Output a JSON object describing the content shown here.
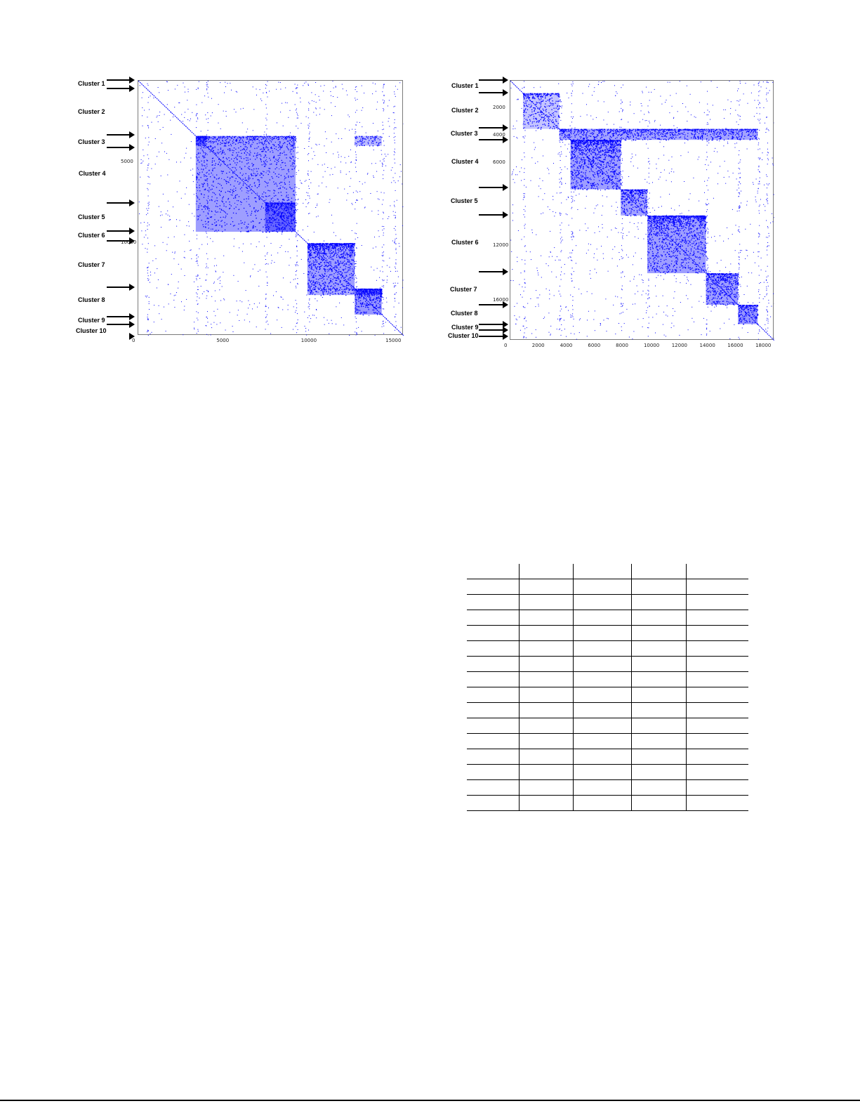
{
  "chart_data": [
    {
      "type": "heatmap",
      "title": "",
      "xlabel": "",
      "ylabel": "",
      "x_ticks": [
        "0",
        "5000",
        "10000",
        "15000"
      ],
      "y_ticks": [
        "5000",
        "10000"
      ],
      "xlim": [
        0,
        15700
      ],
      "ylim": [
        0,
        15700
      ],
      "color": "#0000ff",
      "cluster_labels": [
        "Cluster 1",
        "Cluster 2",
        "Cluster 3",
        "Cluster 4",
        "Cluster 5",
        "Cluster 6",
        "Cluster 7",
        "Cluster 8",
        "Cluster 9",
        "Cluster 10"
      ],
      "cluster_boundaries": [
        0,
        500,
        3400,
        4000,
        7500,
        9300,
        10000,
        12800,
        14400,
        15100
      ],
      "blocks": [
        {
          "x": [
            3400,
            9300
          ],
          "y": [
            3400,
            9300
          ],
          "density": 0.85
        },
        {
          "x": [
            3400,
            4000
          ],
          "y": [
            3400,
            4000
          ],
          "density": 0.95
        },
        {
          "x": [
            7500,
            9300
          ],
          "y": [
            7500,
            9300
          ],
          "density": 0.8
        },
        {
          "x": [
            10000,
            12800
          ],
          "y": [
            10000,
            12800
          ],
          "density": 0.85
        },
        {
          "x": [
            12800,
            14400
          ],
          "y": [
            12800,
            14400
          ],
          "density": 0.9
        },
        {
          "x": [
            12800,
            14400
          ],
          "y": [
            3400,
            4000
          ],
          "density": 0.6
        },
        {
          "x": [
            10000,
            14400
          ],
          "y": [
            12800,
            13200
          ],
          "density": 0.7
        }
      ]
    },
    {
      "type": "heatmap",
      "title": "",
      "xlabel": "",
      "ylabel": "",
      "x_ticks": [
        "0",
        "2000",
        "4000",
        "6000",
        "8000",
        "10000",
        "12000",
        "14000",
        "16000",
        "18000"
      ],
      "y_ticks": [
        "2000",
        "4000",
        "6000",
        "12000",
        "16000"
      ],
      "xlim": [
        0,
        18900
      ],
      "ylim": [
        0,
        18900
      ],
      "color": "#0000ff",
      "cluster_labels": [
        "Cluster 1",
        "Cluster 2",
        "Cluster 3",
        "Cluster 4",
        "Cluster 5",
        "Cluster 6",
        "Cluster 7",
        "Cluster 8",
        "Cluster 9",
        "Cluster 10"
      ],
      "cluster_boundaries": [
        0,
        900,
        3500,
        4300,
        7900,
        9800,
        14000,
        16300,
        17700,
        18300
      ],
      "blocks": [
        {
          "x": [
            3500,
            17700
          ],
          "y": [
            3500,
            4300
          ],
          "density": 0.8
        },
        {
          "x": [
            4300,
            7900
          ],
          "y": [
            4300,
            7900
          ],
          "density": 0.85
        },
        {
          "x": [
            7900,
            9800
          ],
          "y": [
            7900,
            9800
          ],
          "density": 0.8
        },
        {
          "x": [
            9800,
            14000
          ],
          "y": [
            9800,
            14000
          ],
          "density": 0.85
        },
        {
          "x": [
            14000,
            16300
          ],
          "y": [
            14000,
            16300
          ],
          "density": 0.85
        },
        {
          "x": [
            16300,
            17700
          ],
          "y": [
            16300,
            17700
          ],
          "density": 0.9
        },
        {
          "x": [
            900,
            3500
          ],
          "y": [
            900,
            3500
          ],
          "density": 0.5
        }
      ]
    }
  ],
  "table": {
    "columns": 5,
    "rows": 16
  }
}
